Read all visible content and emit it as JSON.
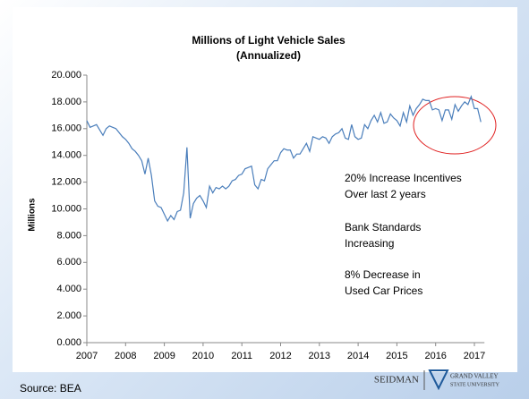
{
  "chart_data": {
    "type": "line",
    "title": [
      "Millions of Light Vehicle Sales",
      "(Annualized)"
    ],
    "y_label": "Millions",
    "categories": [
      "2007",
      null,
      null,
      null,
      null,
      null,
      null,
      null,
      null,
      null,
      null,
      null,
      "2008",
      null,
      null,
      null,
      null,
      null,
      null,
      null,
      null,
      null,
      null,
      null,
      "2009",
      null,
      null,
      null,
      null,
      null,
      null,
      null,
      null,
      null,
      null,
      null,
      "2010",
      null,
      null,
      null,
      null,
      null,
      null,
      null,
      null,
      null,
      null,
      null,
      "2011",
      null,
      null,
      null,
      null,
      null,
      null,
      null,
      null,
      null,
      null,
      null,
      "2012",
      null,
      null,
      null,
      null,
      null,
      null,
      null,
      null,
      null,
      null,
      null,
      "2013",
      null,
      null,
      null,
      null,
      null,
      null,
      null,
      null,
      null,
      null,
      null,
      "2014",
      null,
      null,
      null,
      null,
      null,
      null,
      null,
      null,
      null,
      null,
      null,
      "2015",
      null,
      null,
      null,
      null,
      null,
      null,
      null,
      null,
      null,
      null,
      null,
      "2016",
      null,
      null,
      null,
      null,
      null,
      null,
      null,
      null,
      null,
      null,
      null,
      "2017",
      null,
      null
    ],
    "series": [
      {
        "color": "#4a7ebb",
        "values": [
          16.6,
          16.1,
          16.2,
          16.3,
          15.9,
          15.5,
          16.0,
          16.2,
          16.1,
          16.0,
          15.7,
          15.4,
          15.2,
          14.9,
          14.5,
          14.3,
          14.0,
          13.6,
          12.6,
          13.8,
          12.5,
          10.6,
          10.2,
          10.1,
          9.6,
          9.1,
          9.5,
          9.2,
          9.8,
          9.9,
          11.2,
          14.6,
          9.3,
          10.4,
          10.8,
          11.0,
          10.6,
          10.1,
          11.7,
          11.2,
          11.6,
          11.5,
          11.7,
          11.5,
          11.7,
          12.1,
          12.2,
          12.5,
          12.6,
          13.0,
          13.1,
          13.2,
          11.8,
          11.5,
          12.2,
          12.1,
          13.0,
          13.3,
          13.6,
          13.6,
          14.2,
          14.5,
          14.4,
          14.4,
          13.8,
          14.1,
          14.1,
          14.5,
          14.9,
          14.3,
          15.4,
          15.3,
          15.2,
          15.4,
          15.3,
          14.9,
          15.4,
          15.6,
          15.7,
          16.0,
          15.3,
          15.2,
          16.3,
          15.4,
          15.2,
          15.3,
          16.3,
          16.0,
          16.6,
          17.0,
          16.5,
          17.2,
          16.4,
          16.5,
          17.1,
          16.8,
          16.6,
          16.2,
          17.2,
          16.5,
          17.7,
          17.0,
          17.5,
          17.8,
          18.2,
          18.1,
          18.1,
          17.4,
          17.5,
          17.4,
          16.6,
          17.4,
          17.4,
          16.7,
          17.8,
          17.3,
          17.7,
          18.0,
          17.8,
          18.4,
          17.5,
          17.5,
          16.5
        ]
      }
    ],
    "ylim": [
      0,
      20
    ],
    "yticks": [
      {
        "value": 0,
        "label": "0.000"
      },
      {
        "value": 2,
        "label": "2.000"
      },
      {
        "value": 4,
        "label": "4.000"
      },
      {
        "value": 6,
        "label": "6.000"
      },
      {
        "value": 8,
        "label": "8.000"
      },
      {
        "value": 10,
        "label": "10.000"
      },
      {
        "value": 12,
        "label": "12.000"
      },
      {
        "value": 14,
        "label": "14.000"
      },
      {
        "value": 16,
        "label": "16.000"
      },
      {
        "value": 18,
        "label": "18.000"
      },
      {
        "value": 20,
        "label": "20.000"
      }
    ],
    "grid": false,
    "annotations": [
      "20% Increase Incentives",
      "Over last 2 years",
      "Bank Standards",
      "Increasing",
      "8% Decrease in",
      "Used Car Prices"
    ]
  },
  "footer": {
    "source": "Source: BEA",
    "logo": [
      "SEIDMAN",
      "GRAND VALLEY",
      "STATE UNIVERSITY"
    ]
  }
}
